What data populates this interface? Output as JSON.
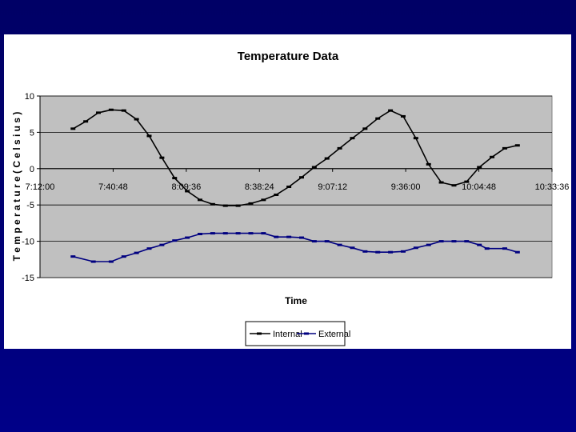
{
  "chart_data": {
    "type": "line",
    "title": "Temperature Data",
    "xlabel": "Time",
    "ylabel": "T e m p e r a t u r e   ( C e l s i u s )",
    "x_ticks": [
      "7:12:00",
      "7:40:48",
      "8:09:36",
      "8:38:24",
      "9:07:12",
      "9:36:00",
      "10:04:48",
      "10:33:36"
    ],
    "xlim": [
      "7:12:00",
      "10:33:36"
    ],
    "ylim": [
      -15,
      10
    ],
    "y_ticks": [
      10,
      5,
      0,
      -5,
      -10,
      -15
    ],
    "grid": "horizontal",
    "legend_position": "bottom",
    "series": [
      {
        "name": "Internal",
        "color": "#000000",
        "marker": "dash",
        "x": [
          "7:25:00",
          "7:30:00",
          "7:35:00",
          "7:40:00",
          "7:45:00",
          "7:50:00",
          "7:55:00",
          "8:00:00",
          "8:05:00",
          "8:10:00",
          "8:15:00",
          "8:20:00",
          "8:25:00",
          "8:30:00",
          "8:35:00",
          "8:40:00",
          "8:45:00",
          "8:50:00",
          "8:55:00",
          "9:00:00",
          "9:05:00",
          "9:10:00",
          "9:15:00",
          "9:20:00",
          "9:25:00",
          "9:30:00",
          "9:35:00",
          "9:40:00",
          "9:45:00",
          "9:50:00",
          "9:55:00",
          "10:00:00",
          "10:05:00",
          "10:10:00",
          "10:15:00",
          "10:20:00"
        ],
        "values": [
          5.5,
          6.5,
          7.7,
          8.1,
          8.0,
          6.8,
          4.5,
          1.5,
          -1.3,
          -3.1,
          -4.3,
          -4.9,
          -5.1,
          -5.1,
          -4.8,
          -4.3,
          -3.6,
          -2.5,
          -1.2,
          0.2,
          1.4,
          2.8,
          4.2,
          5.5,
          6.9,
          8.0,
          7.2,
          4.2,
          0.6,
          -1.9,
          -2.3,
          -1.8,
          0.2,
          1.6,
          2.8,
          3.2
        ]
      },
      {
        "name": "External",
        "color": "#000080",
        "marker": "dash",
        "x": [
          "7:25:00",
          "7:33:00",
          "7:40:00",
          "7:45:00",
          "7:50:00",
          "7:55:00",
          "8:00:00",
          "8:05:00",
          "8:10:00",
          "8:15:00",
          "8:20:00",
          "8:25:00",
          "8:30:00",
          "8:35:00",
          "8:40:00",
          "8:45:00",
          "8:50:00",
          "8:55:00",
          "9:00:00",
          "9:05:00",
          "9:10:00",
          "9:15:00",
          "9:20:00",
          "9:25:00",
          "9:30:00",
          "9:35:00",
          "9:40:00",
          "9:45:00",
          "9:50:00",
          "9:55:00",
          "10:00:00",
          "10:05:00",
          "10:08:00",
          "10:15:00",
          "10:20:00"
        ],
        "values": [
          -12.1,
          -12.8,
          -12.8,
          -12.1,
          -11.6,
          -11.0,
          -10.5,
          -9.9,
          -9.5,
          -9.0,
          -8.9,
          -8.9,
          -8.9,
          -8.9,
          -8.9,
          -9.4,
          -9.4,
          -9.5,
          -10.0,
          -10.0,
          -10.5,
          -10.9,
          -11.4,
          -11.5,
          -11.5,
          -11.4,
          -10.9,
          -10.5,
          -10.0,
          -10.0,
          -10.0,
          -10.5,
          -11.0,
          -11.0,
          -11.5
        ]
      }
    ]
  }
}
